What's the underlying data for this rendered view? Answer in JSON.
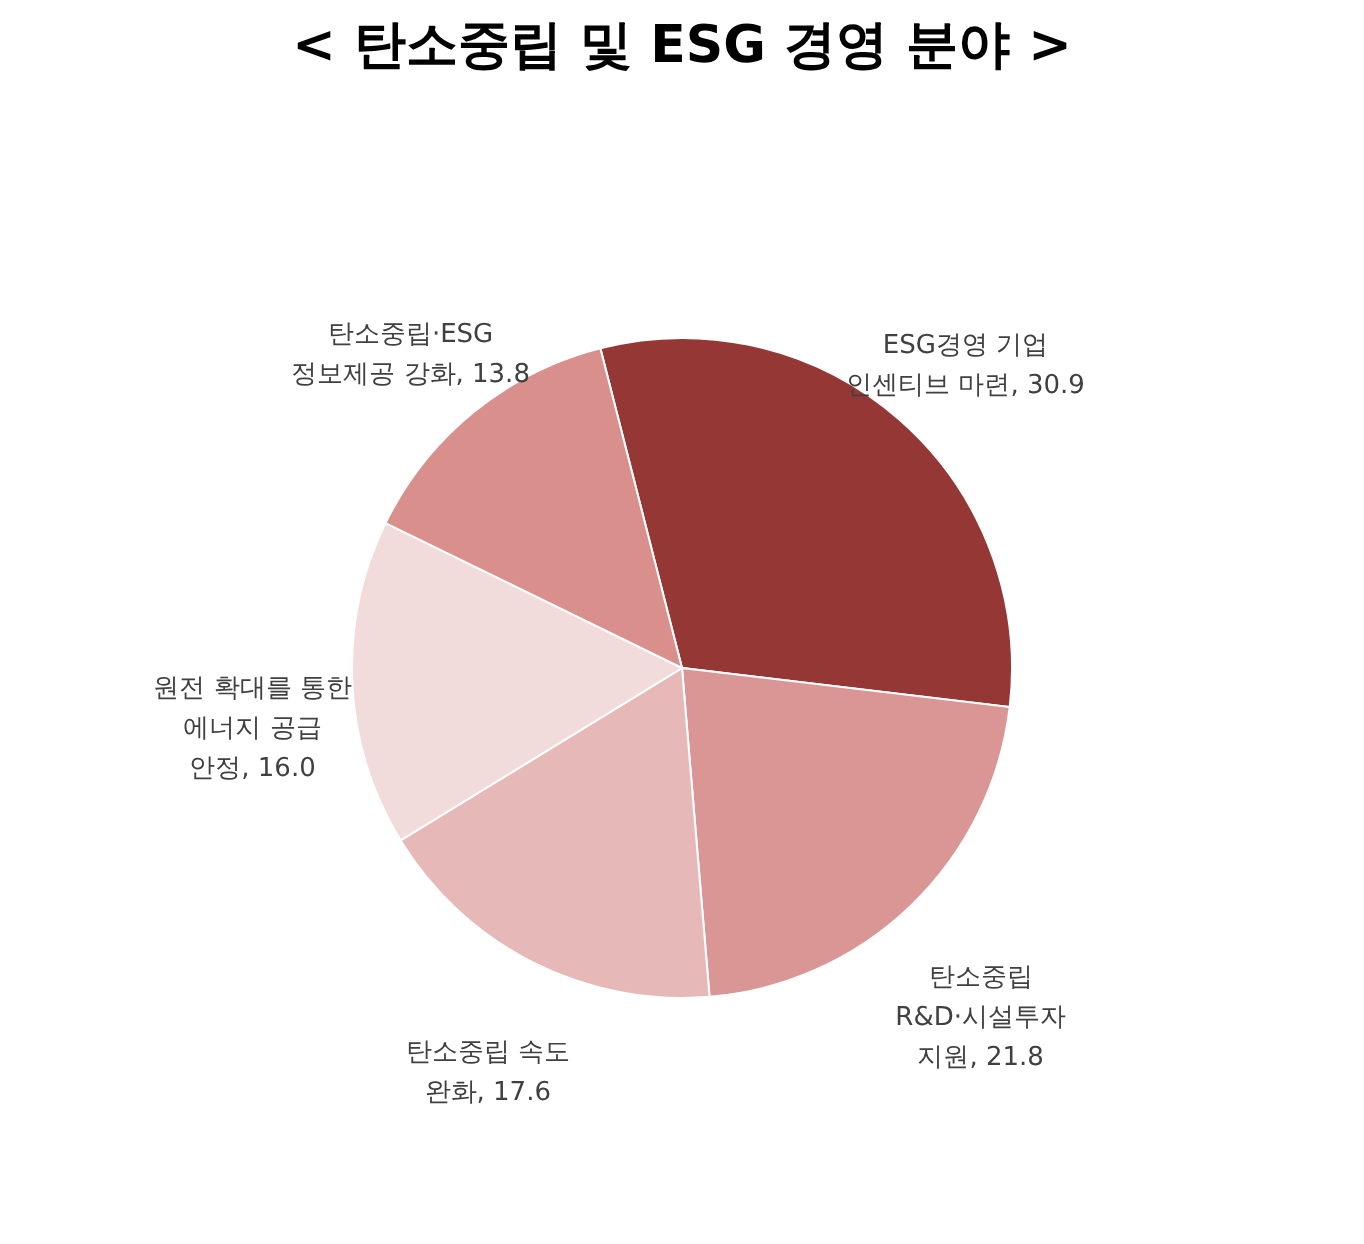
{
  "chart_data": {
    "type": "pie",
    "title": "< 탄소중립 및 ESG 경영 분야 >",
    "categories": [
      "ESG경영 기업\n인센티브 마련",
      "탄소중립\nR&D·시설투자\n지원",
      "탄소중립 속도\n완화",
      "원전 확대를 통한\n에너지 공급\n안정",
      "탄소중립·ESG\n정보제공 강화"
    ],
    "values": [
      30.9,
      21.8,
      17.6,
      16.0,
      13.8
    ],
    "value_labels": [
      "30.9",
      "21.8",
      "17.6",
      "16.0",
      "13.8"
    ],
    "colors": [
      "#953735",
      "#d99694",
      "#e6b9b8",
      "#f2dcdb",
      "#d9908d"
    ]
  }
}
